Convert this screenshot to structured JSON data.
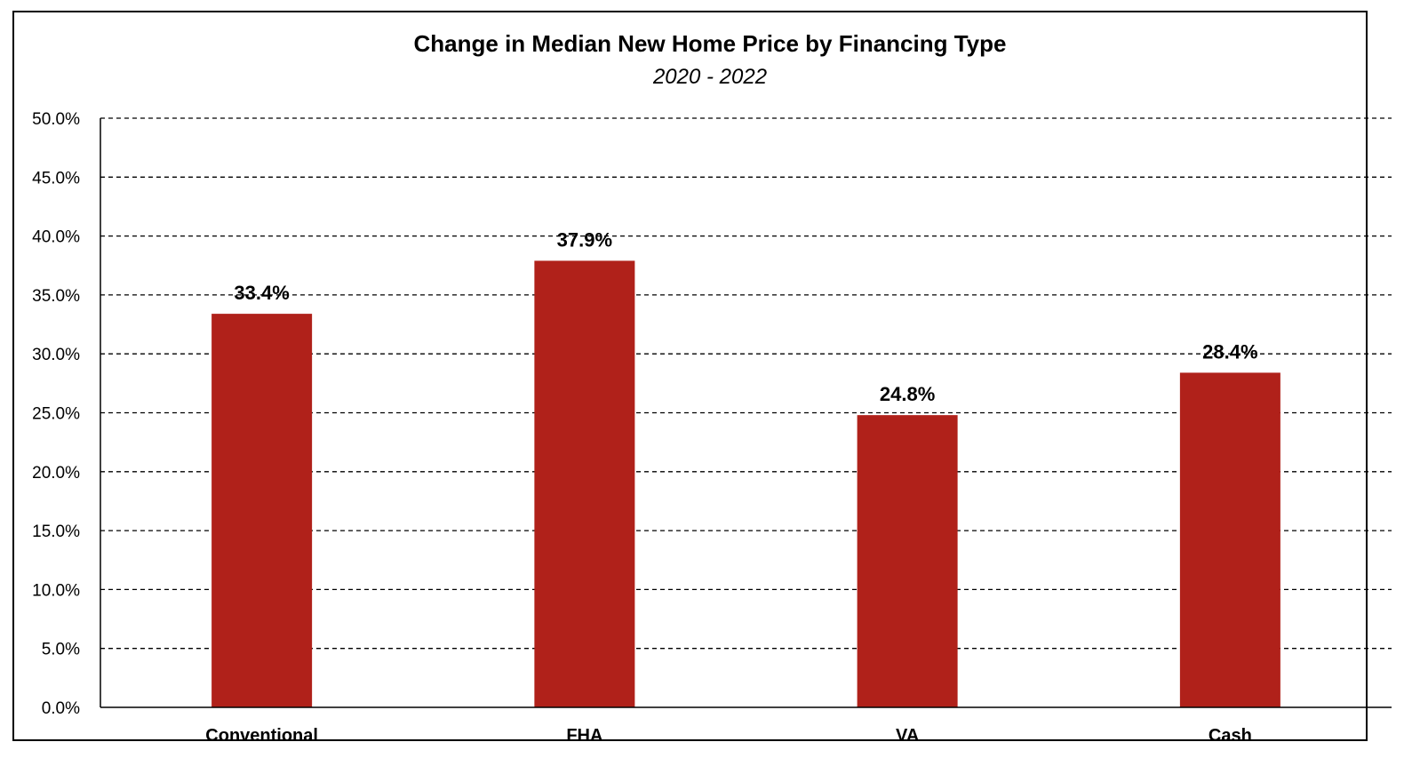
{
  "chart_data": {
    "type": "bar",
    "title": "Change in Median New Home Price by Financing Type",
    "subtitle": "2020 - 2022",
    "xlabel": "",
    "ylabel": "",
    "categories": [
      "Conventional",
      "FHA",
      "VA",
      "Cash"
    ],
    "values": [
      33.4,
      37.9,
      24.8,
      28.4
    ],
    "data_labels": [
      "33.4%",
      "37.9%",
      "24.8%",
      "28.4%"
    ],
    "ylim": [
      0,
      50
    ],
    "yticks": [
      0,
      5,
      10,
      15,
      20,
      25,
      30,
      35,
      40,
      45,
      50
    ],
    "ytick_labels": [
      "0.0%",
      "5.0%",
      "10.0%",
      "15.0%",
      "20.0%",
      "25.0%",
      "30.0%",
      "35.0%",
      "40.0%",
      "45.0%",
      "50.0%"
    ],
    "grid": "dashed horizontal",
    "legend": "none",
    "bar_color": "#B0211A"
  }
}
